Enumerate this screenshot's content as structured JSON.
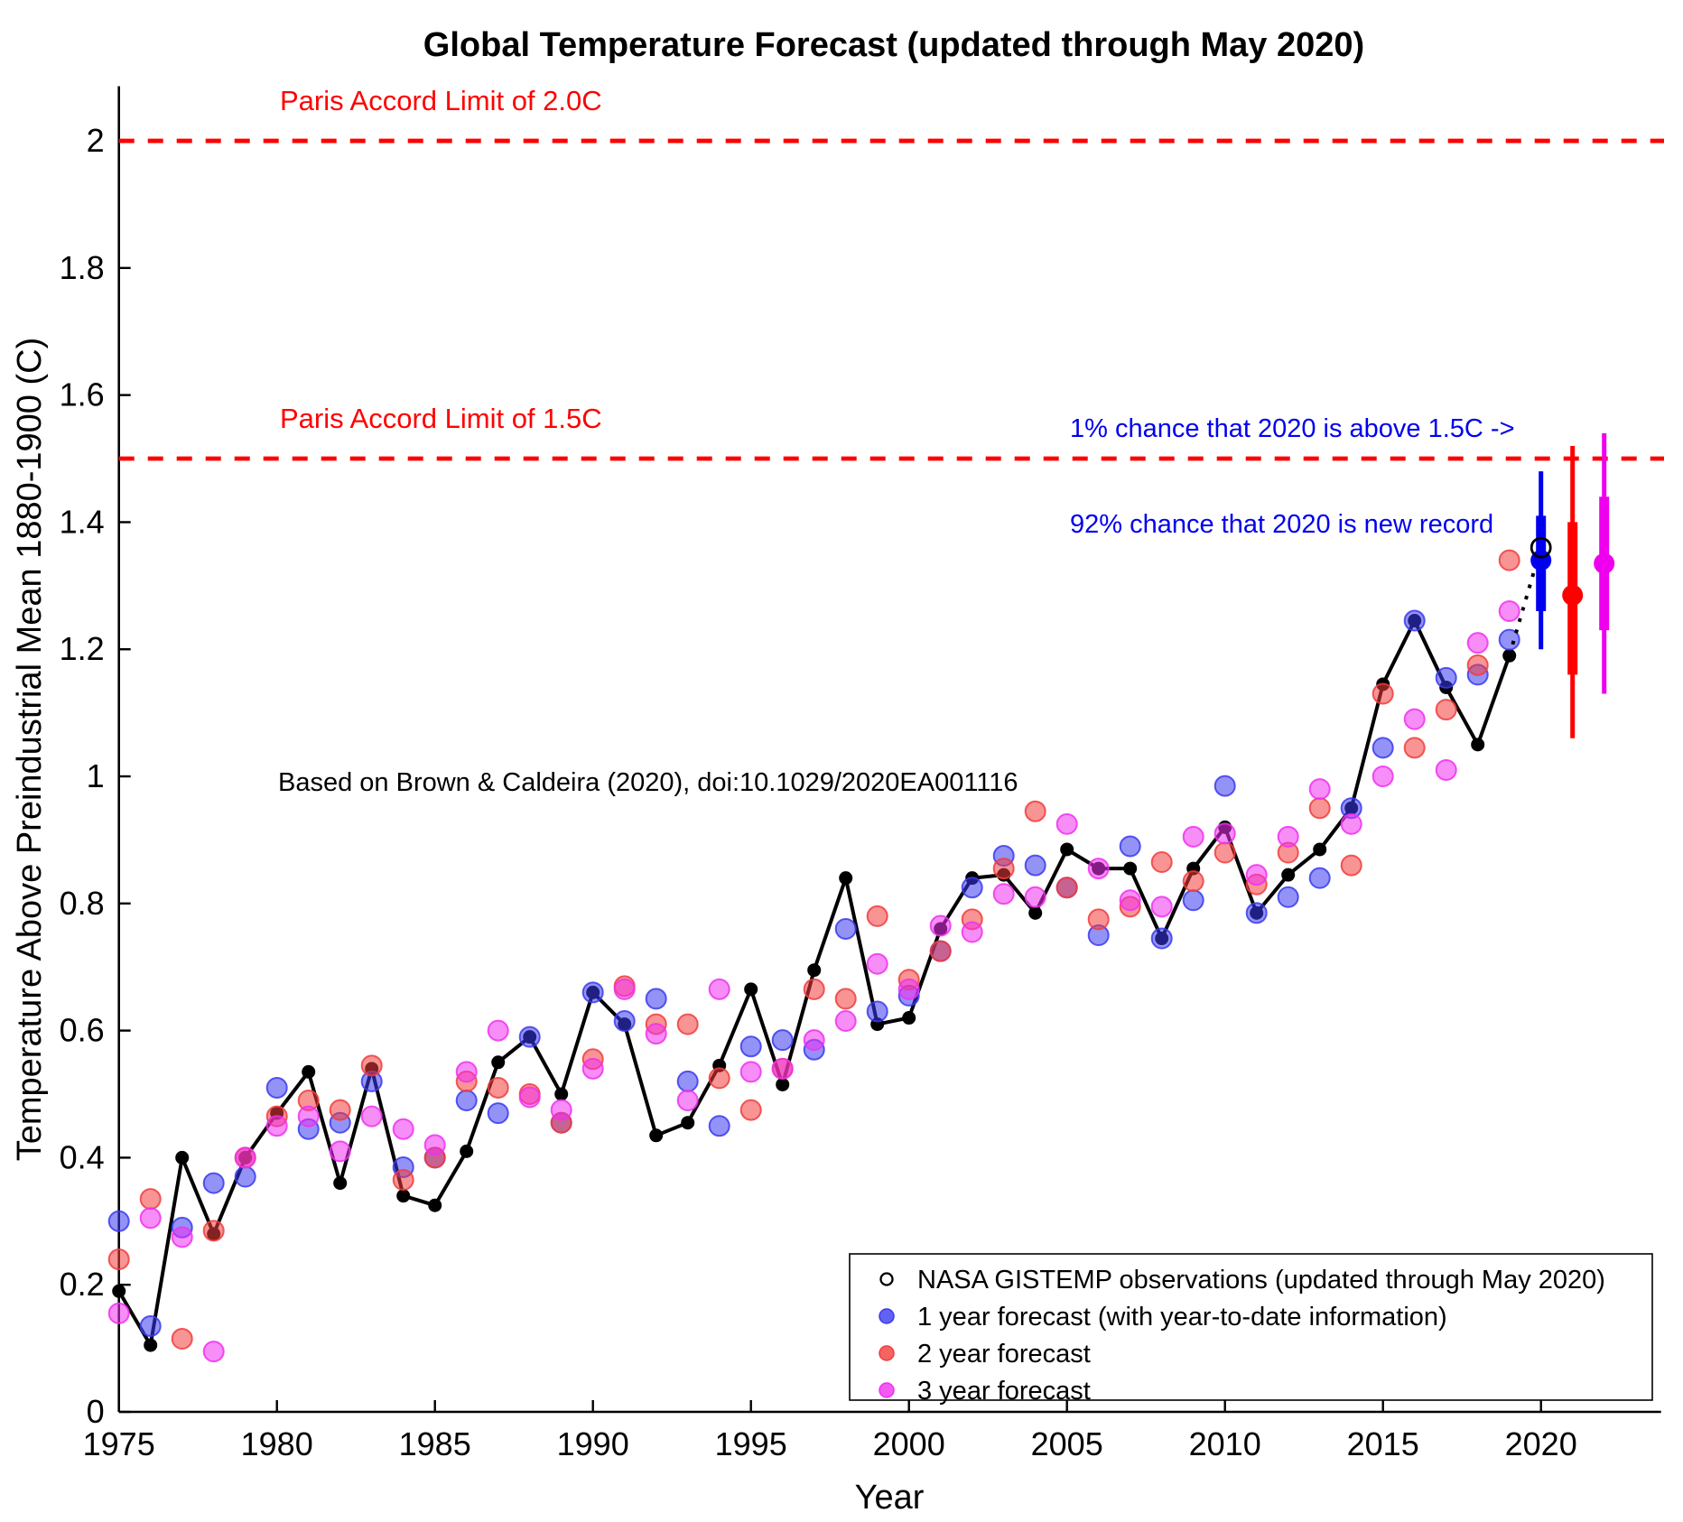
{
  "annotations": {
    "paris_2c": "Paris Accord Limit of 2.0C",
    "paris_1p5c": "Paris Accord Limit of 1.5C",
    "chance_above_1p5": "1% chance that 2020 is above 1.5C ->",
    "chance_new_record": "92% chance that 2020 is new record",
    "source": "Based on Brown & Caldeira (2020), doi:10.1029/2020EA001116"
  },
  "colors": {
    "observations": "#000000",
    "forecast1": "#3a3af0",
    "forecast2": "#f23c3c",
    "forecast3": "#f030f0",
    "bar1": "#0000ee",
    "bar2": "#ff0000",
    "bar3": "#ee00ee",
    "limit_line": "#ff0000",
    "annotation_blue": "#0000ee"
  },
  "legend": {
    "items": [
      {
        "label": "NASA GISTEMP observations (updated through May 2020)",
        "marker": "open-circle",
        "color": "#000000"
      },
      {
        "label": "1 year forecast (with year-to-date information)",
        "marker": "dot",
        "color": "#3a3af0"
      },
      {
        "label": "2 year forecast",
        "marker": "dot",
        "color": "#f23c3c"
      },
      {
        "label": "3 year forecast",
        "marker": "dot",
        "color": "#f030f0"
      }
    ]
  },
  "chart_data": {
    "type": "line+scatter",
    "title": "Global Temperature Forecast (updated through May 2020)",
    "xlabel": "Year",
    "ylabel": "Temperature Above Preindustrial Mean 1880-1900 (C)",
    "xlim": [
      1975,
      2023.8
    ],
    "ylim": [
      0,
      2.086
    ],
    "grid": false,
    "legend_position": "lower right",
    "x_ticks": [
      1975,
      1980,
      1985,
      1990,
      1995,
      2000,
      2005,
      2010,
      2015,
      2020
    ],
    "y_ticks": [
      0,
      0.2,
      0.4,
      0.6,
      0.8,
      1.0,
      1.2,
      1.4,
      1.6,
      1.8,
      2.0
    ],
    "y_tick_labels": [
      "0",
      "0.2",
      "0.4",
      "0.6",
      "0.8",
      "1",
      "1.2",
      "1.4",
      "1.6",
      "1.8",
      "2"
    ],
    "limit_lines": [
      {
        "value": 2.0,
        "label": "Paris Accord Limit of 2.0C"
      },
      {
        "value": 1.5,
        "label": "Paris Accord Limit of 1.5C"
      }
    ],
    "years": [
      1975,
      1976,
      1977,
      1978,
      1979,
      1980,
      1981,
      1982,
      1983,
      1984,
      1985,
      1986,
      1987,
      1988,
      1989,
      1990,
      1991,
      1992,
      1993,
      1994,
      1995,
      1996,
      1997,
      1998,
      1999,
      2000,
      2001,
      2002,
      2003,
      2004,
      2005,
      2006,
      2007,
      2008,
      2009,
      2010,
      2011,
      2012,
      2013,
      2014,
      2015,
      2016,
      2017,
      2018,
      2019
    ],
    "observed": [
      0.19,
      0.105,
      0.4,
      0.28,
      0.4,
      0.47,
      0.535,
      0.36,
      0.54,
      0.34,
      0.325,
      0.41,
      0.55,
      0.59,
      0.5,
      0.66,
      0.61,
      0.435,
      0.455,
      0.545,
      0.665,
      0.515,
      0.695,
      0.84,
      0.61,
      0.62,
      0.76,
      0.84,
      0.845,
      0.785,
      0.885,
      0.855,
      0.855,
      0.745,
      0.855,
      0.92,
      0.785,
      0.845,
      0.885,
      0.95,
      1.145,
      1.245,
      1.14,
      1.05,
      1.19
    ],
    "forecast_1yr": [
      0.3,
      0.135,
      0.29,
      0.36,
      0.37,
      0.51,
      0.445,
      0.455,
      0.52,
      0.385,
      0.4,
      0.49,
      0.47,
      0.59,
      0.455,
      0.66,
      0.615,
      0.65,
      0.52,
      0.45,
      0.575,
      0.585,
      0.57,
      0.76,
      0.63,
      0.655,
      0.725,
      0.825,
      0.875,
      0.86,
      0.825,
      0.75,
      0.89,
      0.745,
      0.805,
      0.985,
      0.785,
      0.81,
      0.84,
      0.95,
      1.045,
      1.245,
      1.155,
      1.16,
      1.215
    ],
    "forecast_2yr": [
      0.24,
      0.335,
      0.115,
      0.285,
      0.4,
      0.465,
      0.49,
      0.475,
      0.545,
      0.365,
      0.4,
      0.52,
      0.51,
      0.5,
      0.455,
      0.555,
      0.67,
      0.61,
      0.61,
      0.525,
      0.475,
      0.54,
      0.665,
      0.65,
      0.78,
      0.68,
      0.725,
      0.775,
      0.855,
      0.945,
      0.825,
      0.775,
      0.795,
      0.865,
      0.835,
      0.88,
      0.83,
      0.88,
      0.95,
      0.86,
      1.13,
      1.045,
      1.105,
      1.175,
      1.34
    ],
    "forecast_3yr": [
      0.155,
      0.305,
      0.275,
      0.095,
      0.4,
      0.45,
      0.465,
      0.41,
      0.465,
      0.445,
      0.42,
      0.535,
      0.6,
      0.495,
      0.475,
      0.54,
      0.665,
      0.595,
      0.49,
      0.665,
      0.535,
      0.54,
      0.585,
      0.615,
      0.705,
      0.665,
      0.765,
      0.755,
      0.815,
      0.81,
      0.925,
      0.855,
      0.805,
      0.795,
      0.905,
      0.91,
      0.845,
      0.905,
      0.98,
      0.925,
      1.0,
      1.09,
      1.01,
      1.21,
      1.26
    ],
    "observation_2020": {
      "year": 2020,
      "value": 1.36,
      "marker": "open-circle"
    },
    "connector": {
      "from_year": 2019,
      "from_value": 1.19,
      "to_year": 2020,
      "to_value": 1.36,
      "style": "dotted"
    },
    "forecast_intervals": [
      {
        "year": 2020,
        "series": "1 year forecast",
        "color_key": "bar1",
        "center": 1.34,
        "inner": [
          1.26,
          1.41
        ],
        "outer": [
          1.2,
          1.48
        ]
      },
      {
        "year": 2021,
        "series": "2 year forecast",
        "color_key": "bar2",
        "center": 1.285,
        "inner": [
          1.16,
          1.4
        ],
        "outer": [
          1.06,
          1.52
        ]
      },
      {
        "year": 2022,
        "series": "3 year forecast",
        "color_key": "bar3",
        "center": 1.335,
        "inner": [
          1.23,
          1.44
        ],
        "outer": [
          1.13,
          1.54
        ]
      }
    ]
  }
}
